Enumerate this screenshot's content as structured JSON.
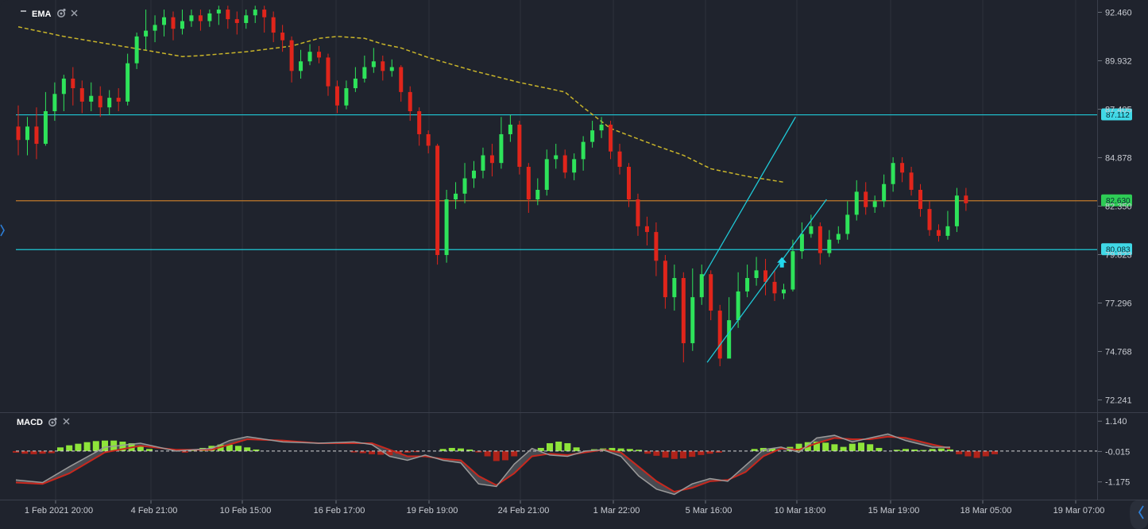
{
  "price_panel": {
    "indicator": "EMA",
    "settings_icon": "gear-icon",
    "close_icon": "close-icon",
    "minimize_icon": "minus-icon"
  },
  "macd_panel": {
    "indicator": "MACD",
    "settings_icon": "gear-icon",
    "close_icon": "close-icon"
  },
  "nav": {
    "left_arrow_icon": "chevron-left-icon",
    "right_edge_icon": "chevron-right-icon"
  },
  "colors": {
    "background": "#1f232d",
    "up": "#2ee35a",
    "down": "#e0251b",
    "ema": "#c9b52a",
    "channel": "#1fc8d6",
    "resistance_orange": "#c07a2a",
    "macd_line": "#9a9a9a",
    "signal_line": "#c8281e",
    "hist_pos": "#8ee43a",
    "hist_neg": "#b0231a"
  },
  "chart_data": {
    "type": "candlestick",
    "y_ticks": [
      "92.460",
      "89.932",
      "87.405",
      "84.878",
      "82.350",
      "79.823",
      "77.296",
      "74.768",
      "72.241"
    ],
    "y_range": [
      71.6,
      93.1
    ],
    "x_ticks": [
      "1 Feb 2021 20:00",
      "4 Feb 21:00",
      "10 Feb 15:00",
      "16 Feb 17:00",
      "19 Feb 19:00",
      "24 Feb 21:00",
      "1 Mar 22:00",
      "5 Mar 16:00",
      "10 Mar 18:00",
      "15 Mar 19:00",
      "18 Mar 05:00",
      "19 Mar 07:00"
    ],
    "horizontal_lines": [
      {
        "price": 87.112,
        "label": "87.112",
        "color": "#1fc8d6"
      },
      {
        "price": 82.63,
        "label": "82.630",
        "color": "#c07a2a"
      },
      {
        "price": 80.083,
        "label": "80.083",
        "color": "#1fc8d6"
      }
    ],
    "channel_upper": [
      [
        75.2,
        78.7
      ],
      [
        85.3,
        87.0
      ]
    ],
    "channel_lower": [
      [
        75.6,
        74.2
      ],
      [
        88.7,
        82.7
      ]
    ],
    "signal_arrow": {
      "bar": 83.8,
      "price": 79.4,
      "direction": "up"
    },
    "ema_line": [
      [
        0,
        91.7
      ],
      [
        5,
        91.2
      ],
      [
        10,
        90.8
      ],
      [
        15,
        90.4
      ],
      [
        18,
        90.15
      ],
      [
        20,
        90.2
      ],
      [
        25,
        90.4
      ],
      [
        30,
        90.7
      ],
      [
        33,
        91.1
      ],
      [
        35,
        91.2
      ],
      [
        38,
        91.1
      ],
      [
        40,
        90.8
      ],
      [
        42,
        90.6
      ],
      [
        45,
        90.1
      ],
      [
        50,
        89.4
      ],
      [
        55,
        88.8
      ],
      [
        60,
        88.3
      ],
      [
        62,
        87.5
      ],
      [
        65,
        86.4
      ],
      [
        70,
        85.5
      ],
      [
        73,
        85.0
      ],
      [
        76,
        84.3
      ],
      [
        80,
        83.9
      ],
      [
        84,
        83.6
      ]
    ],
    "candles": [
      [
        86.5,
        85.8,
        87.6,
        85.0
      ],
      [
        85.8,
        86.5,
        87.0,
        85.0
      ],
      [
        86.5,
        85.6,
        87.5,
        84.8
      ],
      [
        85.6,
        87.3,
        88.3,
        85.5
      ],
      [
        87.3,
        88.2,
        88.8,
        86.8
      ],
      [
        88.2,
        89.0,
        89.2,
        87.3
      ],
      [
        89.0,
        88.5,
        89.6,
        87.6
      ],
      [
        88.5,
        87.8,
        88.9,
        87.2
      ],
      [
        87.8,
        88.1,
        88.8,
        87.3
      ],
      [
        88.1,
        87.5,
        88.6,
        87.0
      ],
      [
        87.5,
        88.0,
        88.4,
        87.1
      ],
      [
        88.0,
        87.8,
        88.5,
        87.3
      ],
      [
        87.8,
        89.8,
        90.3,
        87.6
      ],
      [
        89.8,
        91.2,
        91.4,
        89.5
      ],
      [
        91.2,
        91.5,
        92.6,
        90.5
      ],
      [
        91.5,
        91.8,
        92.3,
        90.9
      ],
      [
        91.8,
        92.2,
        92.6,
        91.2
      ],
      [
        92.2,
        91.6,
        92.5,
        91.0
      ],
      [
        91.6,
        92.0,
        92.6,
        91.3
      ],
      [
        92.0,
        92.3,
        92.6,
        91.7
      ],
      [
        92.3,
        92.0,
        92.6,
        91.5
      ],
      [
        92.0,
        92.4,
        92.6,
        91.7
      ],
      [
        92.4,
        92.6,
        92.8,
        91.8
      ],
      [
        92.6,
        92.1,
        92.8,
        91.6
      ],
      [
        92.1,
        91.9,
        92.5,
        91.3
      ],
      [
        91.9,
        92.3,
        92.6,
        91.6
      ],
      [
        92.3,
        92.6,
        92.8,
        91.9
      ],
      [
        92.6,
        92.2,
        92.8,
        91.4
      ],
      [
        92.2,
        91.4,
        92.5,
        90.9
      ],
      [
        91.4,
        91.0,
        91.8,
        90.4
      ],
      [
        91.0,
        89.4,
        91.2,
        88.8
      ],
      [
        89.4,
        89.9,
        90.5,
        89.0
      ],
      [
        89.9,
        90.4,
        90.8,
        89.7
      ],
      [
        90.4,
        90.1,
        90.7,
        89.8
      ],
      [
        90.1,
        88.6,
        90.3,
        88.1
      ],
      [
        88.6,
        87.6,
        88.9,
        87.2
      ],
      [
        87.6,
        88.5,
        88.9,
        87.4
      ],
      [
        88.5,
        89.0,
        89.6,
        88.3
      ],
      [
        89.0,
        89.6,
        90.2,
        88.8
      ],
      [
        89.6,
        89.9,
        90.6,
        89.3
      ],
      [
        89.9,
        89.4,
        90.2,
        88.9
      ],
      [
        89.4,
        89.6,
        90.0,
        89.1
      ],
      [
        89.6,
        88.3,
        89.7,
        87.8
      ],
      [
        88.3,
        87.3,
        88.6,
        86.8
      ],
      [
        87.3,
        86.1,
        87.5,
        85.5
      ],
      [
        86.1,
        85.5,
        86.3,
        85.1
      ],
      [
        85.5,
        79.8,
        85.6,
        79.3
      ],
      [
        79.8,
        82.7,
        83.2,
        79.4
      ],
      [
        82.7,
        83.0,
        83.6,
        82.2
      ],
      [
        83.0,
        83.8,
        84.6,
        82.5
      ],
      [
        83.8,
        84.2,
        84.7,
        83.3
      ],
      [
        84.2,
        85.0,
        85.4,
        83.8
      ],
      [
        85.0,
        84.6,
        85.6,
        83.9
      ],
      [
        84.6,
        86.1,
        87.0,
        84.3
      ],
      [
        86.1,
        86.6,
        87.1,
        85.7
      ],
      [
        86.6,
        84.4,
        86.8,
        84.0
      ],
      [
        84.4,
        82.7,
        84.6,
        82.0
      ],
      [
        82.7,
        83.2,
        83.8,
        82.4
      ],
      [
        83.2,
        84.8,
        85.3,
        82.9
      ],
      [
        84.8,
        85.0,
        85.6,
        84.3
      ],
      [
        85.0,
        84.1,
        85.3,
        83.8
      ],
      [
        84.1,
        84.8,
        85.1,
        83.7
      ],
      [
        84.8,
        85.7,
        86.0,
        84.2
      ],
      [
        85.7,
        86.3,
        86.8,
        85.4
      ],
      [
        86.3,
        86.6,
        87.0,
        85.9
      ],
      [
        86.6,
        85.2,
        86.8,
        84.8
      ],
      [
        85.2,
        84.4,
        85.6,
        84.0
      ],
      [
        84.4,
        82.7,
        84.6,
        82.3
      ],
      [
        82.7,
        81.3,
        83.0,
        80.8
      ],
      [
        81.3,
        81.0,
        81.8,
        80.3
      ],
      [
        81.0,
        79.5,
        81.5,
        78.7
      ],
      [
        79.5,
        77.6,
        79.8,
        77.0
      ],
      [
        77.6,
        78.6,
        79.3,
        76.9
      ],
      [
        78.6,
        75.2,
        78.9,
        74.2
      ],
      [
        75.2,
        77.6,
        79.1,
        74.8
      ],
      [
        77.6,
        78.8,
        79.3,
        77.2
      ],
      [
        78.8,
        76.9,
        79.0,
        76.4
      ],
      [
        76.9,
        74.4,
        77.2,
        74.0
      ],
      [
        74.4,
        76.4,
        77.6,
        75.8
      ],
      [
        76.4,
        77.9,
        78.9,
        76.0
      ],
      [
        77.9,
        78.6,
        79.3,
        77.6
      ],
      [
        78.6,
        79.0,
        79.7,
        78.2
      ],
      [
        79.0,
        78.4,
        79.6,
        77.7
      ],
      [
        78.4,
        77.8,
        79.0,
        77.4
      ],
      [
        77.8,
        78.0,
        78.3,
        77.5
      ],
      [
        78.0,
        80.0,
        80.6,
        77.9
      ],
      [
        80.0,
        80.9,
        81.5,
        79.6
      ],
      [
        80.9,
        81.3,
        81.9,
        80.7
      ],
      [
        81.3,
        79.9,
        81.5,
        79.3
      ],
      [
        79.9,
        80.6,
        81.1,
        79.7
      ],
      [
        80.6,
        80.9,
        81.3,
        80.4
      ],
      [
        80.9,
        81.9,
        82.6,
        80.6
      ],
      [
        81.9,
        83.1,
        83.7,
        81.6
      ],
      [
        83.1,
        82.3,
        83.6,
        81.9
      ],
      [
        82.3,
        82.6,
        82.9,
        82.0
      ],
      [
        82.6,
        83.5,
        84.0,
        82.3
      ],
      [
        83.5,
        84.6,
        84.9,
        83.1
      ],
      [
        84.6,
        84.1,
        84.9,
        83.6
      ],
      [
        84.1,
        83.2,
        84.4,
        82.9
      ],
      [
        83.2,
        82.2,
        83.5,
        81.8
      ],
      [
        82.2,
        81.1,
        82.6,
        80.8
      ],
      [
        81.1,
        80.8,
        81.4,
        80.5
      ],
      [
        80.8,
        81.3,
        82.1,
        80.6
      ],
      [
        81.3,
        82.9,
        83.3,
        81.0
      ],
      [
        82.9,
        82.5,
        83.3,
        82.1
      ]
    ],
    "macd": {
      "zero_label": "-0.015",
      "y_ticks": [
        "1.140",
        "-0.015",
        "-1.175"
      ],
      "y_range": [
        -1.85,
        1.45
      ],
      "macd_line": [
        [
          0,
          -1.1
        ],
        [
          3,
          -1.2
        ],
        [
          6,
          -0.6
        ],
        [
          10,
          0.15
        ],
        [
          14,
          0.3
        ],
        [
          18,
          0.0
        ],
        [
          22,
          0.1
        ],
        [
          24,
          0.4
        ],
        [
          26,
          0.55
        ],
        [
          30,
          0.35
        ],
        [
          34,
          0.3
        ],
        [
          38,
          0.35
        ],
        [
          40,
          0.25
        ],
        [
          42,
          -0.2
        ],
        [
          44,
          -0.35
        ],
        [
          46,
          -0.15
        ],
        [
          48,
          -0.35
        ],
        [
          50,
          -0.45
        ],
        [
          52,
          -1.25
        ],
        [
          54,
          -1.35
        ],
        [
          56,
          -0.5
        ],
        [
          58,
          0.1
        ],
        [
          60,
          -0.15
        ],
        [
          62,
          -0.2
        ],
        [
          64,
          0.0
        ],
        [
          66,
          0.05
        ],
        [
          68,
          -0.2
        ],
        [
          70,
          -0.95
        ],
        [
          72,
          -1.45
        ],
        [
          74,
          -1.65
        ],
        [
          76,
          -1.25
        ],
        [
          78,
          -1.05
        ],
        [
          80,
          -1.15
        ],
        [
          82,
          -0.55
        ],
        [
          84,
          0.05
        ],
        [
          86,
          0.15
        ],
        [
          88,
          -0.05
        ],
        [
          90,
          0.5
        ],
        [
          92,
          0.6
        ],
        [
          94,
          0.35
        ],
        [
          96,
          0.5
        ],
        [
          98,
          0.65
        ],
        [
          100,
          0.4
        ],
        [
          103,
          0.15
        ],
        [
          105,
          0.15
        ]
      ],
      "signal_line": [
        [
          0,
          -1.2
        ],
        [
          3,
          -1.25
        ],
        [
          6,
          -0.85
        ],
        [
          10,
          -0.05
        ],
        [
          14,
          0.2
        ],
        [
          18,
          0.05
        ],
        [
          22,
          0.05
        ],
        [
          24,
          0.25
        ],
        [
          26,
          0.45
        ],
        [
          30,
          0.4
        ],
        [
          34,
          0.3
        ],
        [
          38,
          0.3
        ],
        [
          40,
          0.3
        ],
        [
          42,
          0.05
        ],
        [
          44,
          -0.2
        ],
        [
          46,
          -0.2
        ],
        [
          48,
          -0.3
        ],
        [
          50,
          -0.35
        ],
        [
          52,
          -0.95
        ],
        [
          54,
          -1.3
        ],
        [
          56,
          -0.85
        ],
        [
          58,
          -0.2
        ],
        [
          60,
          -0.1
        ],
        [
          62,
          -0.15
        ],
        [
          64,
          -0.05
        ],
        [
          66,
          0.05
        ],
        [
          68,
          -0.05
        ],
        [
          70,
          -0.6
        ],
        [
          72,
          -1.15
        ],
        [
          74,
          -1.55
        ],
        [
          76,
          -1.4
        ],
        [
          78,
          -1.15
        ],
        [
          80,
          -1.1
        ],
        [
          82,
          -0.8
        ],
        [
          84,
          -0.2
        ],
        [
          86,
          0.1
        ],
        [
          88,
          0.05
        ],
        [
          90,
          0.3
        ],
        [
          92,
          0.5
        ],
        [
          94,
          0.45
        ],
        [
          96,
          0.45
        ],
        [
          98,
          0.55
        ],
        [
          100,
          0.5
        ],
        [
          103,
          0.25
        ],
        [
          105,
          0.1
        ]
      ],
      "histogram": [
        [
          5,
          0.14
        ],
        [
          6,
          0.22
        ],
        [
          7,
          0.28
        ],
        [
          8,
          0.34
        ],
        [
          9,
          0.38
        ],
        [
          10,
          0.4
        ],
        [
          11,
          0.4
        ],
        [
          12,
          0.36
        ],
        [
          13,
          0.3
        ],
        [
          14,
          0.2
        ],
        [
          15,
          0.08
        ],
        [
          0,
          -0.06
        ],
        [
          1,
          -0.1
        ],
        [
          2,
          -0.12
        ],
        [
          3,
          -0.1
        ],
        [
          4,
          -0.08
        ],
        [
          19,
          -0.06
        ],
        [
          20,
          0.05
        ],
        [
          21,
          0.12
        ],
        [
          22,
          0.2
        ],
        [
          23,
          0.25
        ],
        [
          24,
          0.24
        ],
        [
          25,
          0.2
        ],
        [
          26,
          0.14
        ],
        [
          27,
          0.06
        ],
        [
          38,
          -0.05
        ],
        [
          39,
          -0.08
        ],
        [
          40,
          -0.12
        ],
        [
          41,
          -0.14
        ],
        [
          42,
          -0.16
        ],
        [
          43,
          -0.1
        ],
        [
          44,
          -0.06
        ],
        [
          45,
          -0.04
        ],
        [
          48,
          0.08
        ],
        [
          49,
          0.12
        ],
        [
          50,
          0.1
        ],
        [
          51,
          0.06
        ],
        [
          52,
          -0.05
        ],
        [
          53,
          -0.2
        ],
        [
          54,
          -0.38
        ],
        [
          55,
          -0.35
        ],
        [
          56,
          -0.2
        ],
        [
          59,
          0.12
        ],
        [
          60,
          0.3
        ],
        [
          61,
          0.36
        ],
        [
          62,
          0.3
        ],
        [
          63,
          0.14
        ],
        [
          65,
          0.07
        ],
        [
          66,
          0.1
        ],
        [
          67,
          0.12
        ],
        [
          68,
          0.1
        ],
        [
          69,
          0.08
        ],
        [
          70,
          0.05
        ],
        [
          71,
          -0.1
        ],
        [
          72,
          -0.18
        ],
        [
          73,
          -0.25
        ],
        [
          74,
          -0.3
        ],
        [
          75,
          -0.28
        ],
        [
          76,
          -0.22
        ],
        [
          77,
          -0.15
        ],
        [
          78,
          -0.1
        ],
        [
          79,
          -0.06
        ],
        [
          83,
          0.08
        ],
        [
          84,
          0.12
        ],
        [
          85,
          0.1
        ],
        [
          87,
          0.16
        ],
        [
          88,
          0.28
        ],
        [
          89,
          0.34
        ],
        [
          90,
          0.36
        ],
        [
          91,
          0.32
        ],
        [
          92,
          0.26
        ],
        [
          93,
          0.16
        ],
        [
          94,
          0.28
        ],
        [
          95,
          0.32
        ],
        [
          96,
          0.26
        ],
        [
          97,
          0.12
        ],
        [
          99,
          0.05
        ],
        [
          100,
          0.08
        ],
        [
          101,
          0.06
        ],
        [
          102,
          0.04
        ],
        [
          103,
          0.08
        ],
        [
          104,
          0.1
        ],
        [
          105,
          0.06
        ],
        [
          106,
          -0.12
        ],
        [
          107,
          -0.2
        ],
        [
          108,
          -0.26
        ],
        [
          109,
          -0.2
        ],
        [
          110,
          -0.12
        ]
      ]
    }
  }
}
